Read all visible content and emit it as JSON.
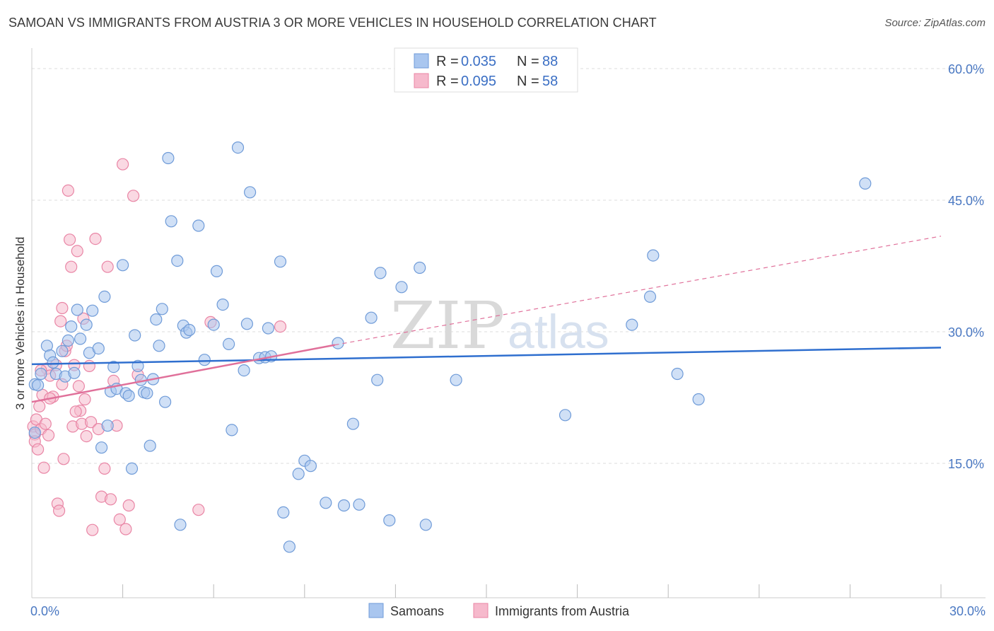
{
  "title": "SAMOAN VS IMMIGRANTS FROM AUSTRIA 3 OR MORE VEHICLES IN HOUSEHOLD CORRELATION CHART",
  "source": "Source: ZipAtlas.com",
  "watermark": {
    "zip": "ZIP",
    "atlas": "atlas"
  },
  "legend": {
    "r_label": "R =",
    "n_label": "N =",
    "rows": [
      {
        "name": "Samoans",
        "r": "0.035",
        "n": "88"
      },
      {
        "name": "Immigrants from Austria",
        "r": "0.095",
        "n": "58"
      }
    ]
  },
  "colors": {
    "samoans_fill": "#a9c6ef",
    "samoans_stroke": "#6f9bd8",
    "samoans_line": "#2f6fcf",
    "austria_fill": "#f6b9cc",
    "austria_stroke": "#e985a5",
    "austria_line": "#e0709a",
    "tick": "#4a78c2",
    "grid": "#dddddd"
  },
  "chart_data": {
    "type": "scatter",
    "title": "SAMOAN VS IMMIGRANTS FROM AUSTRIA 3 OR MORE VEHICLES IN HOUSEHOLD CORRELATION CHART",
    "xlabel": "",
    "ylabel": "3 or more Vehicles in Household",
    "xlim": [
      0,
      30
    ],
    "ylim": [
      0,
      63
    ],
    "x_tick_labels": [
      "0.0%",
      "30.0%"
    ],
    "y_ticks": [
      15,
      30,
      45,
      60
    ],
    "y_tick_labels": [
      "15.0%",
      "30.0%",
      "45.0%",
      "60.0%"
    ],
    "legend_position": "top-center",
    "series": [
      {
        "name": "Samoans",
        "r": 0.035,
        "n": 88,
        "trend": {
          "x": [
            0,
            30
          ],
          "y": [
            26.3,
            28.2
          ],
          "style": "solid"
        },
        "points": [
          [
            0.1,
            24
          ],
          [
            0.2,
            23.9
          ],
          [
            0.3,
            25.2
          ],
          [
            0.5,
            28.4
          ],
          [
            0.6,
            27.3
          ],
          [
            0.7,
            26.5
          ],
          [
            0.8,
            25.2
          ],
          [
            1.0,
            27.8
          ],
          [
            1.1,
            24.9
          ],
          [
            1.2,
            29.0
          ],
          [
            1.3,
            30.6
          ],
          [
            1.4,
            25.3
          ],
          [
            1.5,
            32.5
          ],
          [
            1.6,
            29.2
          ],
          [
            1.8,
            30.8
          ],
          [
            1.9,
            27.6
          ],
          [
            2.0,
            32.4
          ],
          [
            2.2,
            28.1
          ],
          [
            2.3,
            16.8
          ],
          [
            2.4,
            34.0
          ],
          [
            2.5,
            19.3
          ],
          [
            2.6,
            23.2
          ],
          [
            2.7,
            26.0
          ],
          [
            2.8,
            23.5
          ],
          [
            3.0,
            37.6
          ],
          [
            3.1,
            23.0
          ],
          [
            3.2,
            22.7
          ],
          [
            3.3,
            14.4
          ],
          [
            3.4,
            29.6
          ],
          [
            3.5,
            26.1
          ],
          [
            3.6,
            24.5
          ],
          [
            3.7,
            23.1
          ],
          [
            3.8,
            23.0
          ],
          [
            3.9,
            17.0
          ],
          [
            4.0,
            24.6
          ],
          [
            4.1,
            31.4
          ],
          [
            4.2,
            28.4
          ],
          [
            4.3,
            32.6
          ],
          [
            4.4,
            22.0
          ],
          [
            4.5,
            49.8
          ],
          [
            4.6,
            42.6
          ],
          [
            4.8,
            38.1
          ],
          [
            4.9,
            8.0
          ],
          [
            5.0,
            30.7
          ],
          [
            5.1,
            29.9
          ],
          [
            5.2,
            30.2
          ],
          [
            5.5,
            42.1
          ],
          [
            5.7,
            26.8
          ],
          [
            6.0,
            30.8
          ],
          [
            6.1,
            36.9
          ],
          [
            6.3,
            33.1
          ],
          [
            6.5,
            28.6
          ],
          [
            6.6,
            18.8
          ],
          [
            6.8,
            51.0
          ],
          [
            7.0,
            25.6
          ],
          [
            7.1,
            30.9
          ],
          [
            7.2,
            45.9
          ],
          [
            7.5,
            27.0
          ],
          [
            7.7,
            27.1
          ],
          [
            7.8,
            30.4
          ],
          [
            7.9,
            27.2
          ],
          [
            8.2,
            38.0
          ],
          [
            8.3,
            9.4
          ],
          [
            8.5,
            5.5
          ],
          [
            8.8,
            13.8
          ],
          [
            9.0,
            15.3
          ],
          [
            9.2,
            14.7
          ],
          [
            9.7,
            10.5
          ],
          [
            10.1,
            28.7
          ],
          [
            10.3,
            10.2
          ],
          [
            10.6,
            19.5
          ],
          [
            10.8,
            10.3
          ],
          [
            11.2,
            31.6
          ],
          [
            11.4,
            24.5
          ],
          [
            11.5,
            36.7
          ],
          [
            11.8,
            8.5
          ],
          [
            12.2,
            35.1
          ],
          [
            12.8,
            37.3
          ],
          [
            13.0,
            8.0
          ],
          [
            14.0,
            24.5
          ],
          [
            17.6,
            20.5
          ],
          [
            19.8,
            30.8
          ],
          [
            20.4,
            34.0
          ],
          [
            20.5,
            38.7
          ],
          [
            21.3,
            25.2
          ],
          [
            22.0,
            22.3
          ],
          [
            27.5,
            46.9
          ],
          [
            0.1,
            18.5
          ]
        ]
      },
      {
        "name": "Immigrants from Austria",
        "r": 0.095,
        "n": 58,
        "trend": {
          "x": [
            0,
            10
          ],
          "y": [
            22.0,
            28.5
          ],
          "dashed_to": [
            30,
            40.9
          ],
          "style": "solid_then_dashed"
        },
        "points": [
          [
            0.05,
            19.2
          ],
          [
            0.1,
            18.3
          ],
          [
            0.1,
            17.5
          ],
          [
            0.15,
            20.0
          ],
          [
            0.2,
            16.6
          ],
          [
            0.25,
            21.5
          ],
          [
            0.3,
            18.9
          ],
          [
            0.35,
            22.8
          ],
          [
            0.4,
            14.5
          ],
          [
            0.45,
            19.5
          ],
          [
            0.5,
            25.8
          ],
          [
            0.55,
            18.2
          ],
          [
            0.6,
            25.0
          ],
          [
            0.7,
            22.6
          ],
          [
            0.8,
            26.2
          ],
          [
            0.85,
            10.4
          ],
          [
            0.9,
            9.6
          ],
          [
            0.95,
            31.2
          ],
          [
            1.0,
            32.7
          ],
          [
            1.05,
            15.5
          ],
          [
            1.1,
            27.8
          ],
          [
            1.15,
            28.4
          ],
          [
            1.2,
            46.1
          ],
          [
            1.25,
            40.5
          ],
          [
            1.3,
            37.4
          ],
          [
            1.35,
            19.2
          ],
          [
            1.4,
            26.2
          ],
          [
            1.5,
            39.2
          ],
          [
            1.55,
            23.8
          ],
          [
            1.6,
            21.0
          ],
          [
            1.65,
            19.5
          ],
          [
            1.7,
            31.5
          ],
          [
            1.75,
            22.3
          ],
          [
            1.8,
            18.1
          ],
          [
            1.9,
            26.1
          ],
          [
            1.95,
            19.7
          ],
          [
            2.0,
            7.4
          ],
          [
            2.1,
            40.6
          ],
          [
            2.2,
            18.9
          ],
          [
            2.3,
            11.2
          ],
          [
            2.4,
            14.4
          ],
          [
            2.5,
            37.4
          ],
          [
            2.6,
            10.9
          ],
          [
            2.7,
            24.4
          ],
          [
            2.8,
            19.3
          ],
          [
            2.9,
            8.6
          ],
          [
            3.0,
            49.1
          ],
          [
            3.1,
            7.5
          ],
          [
            3.2,
            10.2
          ],
          [
            3.35,
            45.5
          ],
          [
            3.5,
            25.1
          ],
          [
            5.5,
            9.7
          ],
          [
            5.9,
            31.1
          ],
          [
            8.2,
            30.6
          ],
          [
            0.6,
            22.4
          ],
          [
            1.0,
            24.0
          ],
          [
            1.45,
            20.9
          ],
          [
            0.3,
            25.6
          ]
        ]
      }
    ]
  }
}
